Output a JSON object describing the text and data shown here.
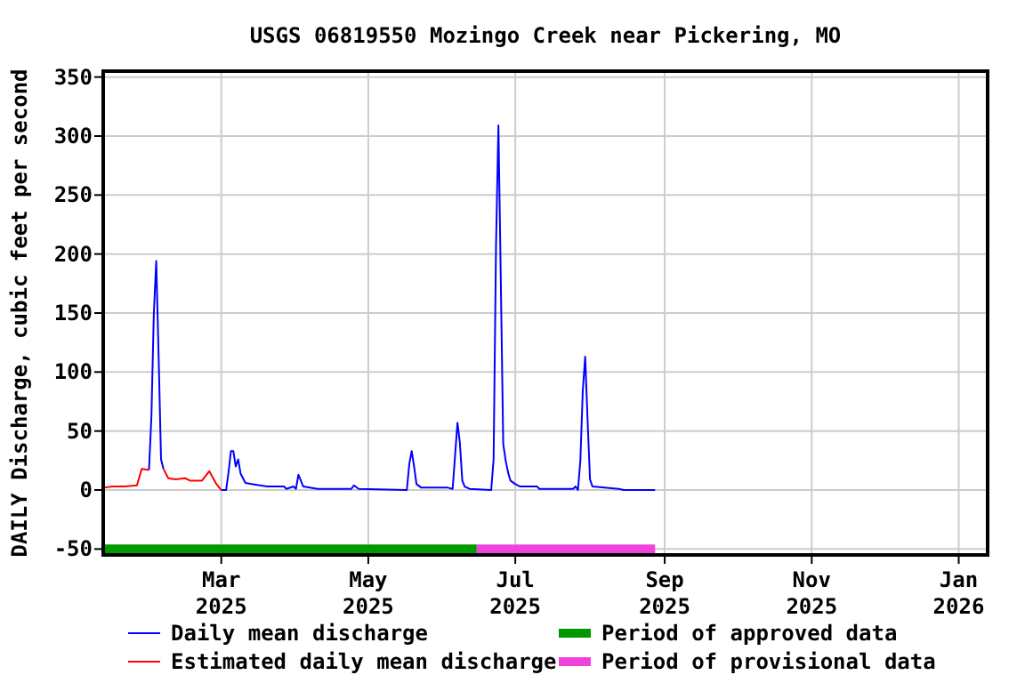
{
  "chart_data": {
    "type": "line",
    "title": "USGS 06819550 Mozingo Creek near Pickering, MO",
    "ylabel": "DAILY Discharge, cubic feet per second",
    "xlim": [
      "2025-01-11",
      "2026-01-13"
    ],
    "xticks": [
      {
        "value": "2025-03-01",
        "label": "Mar\n2025"
      },
      {
        "value": "2025-05-01",
        "label": "May\n2025"
      },
      {
        "value": "2025-07-01",
        "label": "Jul\n2025"
      },
      {
        "value": "2025-09-01",
        "label": "Sep\n2025"
      },
      {
        "value": "2025-11-01",
        "label": "Nov\n2025"
      },
      {
        "value": "2026-01-01",
        "label": "Jan\n2026"
      }
    ],
    "ylim": [
      -55,
      355
    ],
    "yticks": [
      -50,
      0,
      50,
      100,
      150,
      200,
      250,
      300,
      350
    ],
    "grid": true,
    "legend": "bottom",
    "line_style": "solid",
    "marker": "none",
    "series": [
      {
        "name": "Daily mean discharge",
        "color": "#0000ff",
        "x": [
          "2025-01-30",
          "2025-01-31",
          "2025-02-01",
          "2025-02-02",
          "2025-02-03",
          "2025-02-04",
          "2025-02-05",
          "2025-02-15",
          "2025-03-01",
          "2025-03-03",
          "2025-03-04",
          "2025-03-05",
          "2025-03-06",
          "2025-03-07",
          "2025-03-08",
          "2025-03-09",
          "2025-03-11",
          "2025-03-14",
          "2025-03-20",
          "2025-03-27",
          "2025-03-28",
          "2025-03-31",
          "2025-04-01",
          "2025-04-02",
          "2025-04-03",
          "2025-04-04",
          "2025-04-10",
          "2025-04-24",
          "2025-04-25",
          "2025-04-27",
          "2025-05-17",
          "2025-05-18",
          "2025-05-19",
          "2025-05-20",
          "2025-05-21",
          "2025-05-23",
          "2025-06-03",
          "2025-06-05",
          "2025-06-06",
          "2025-06-07",
          "2025-06-08",
          "2025-06-09",
          "2025-06-10",
          "2025-06-12",
          "2025-06-21",
          "2025-06-22",
          "2025-06-23",
          "2025-06-24",
          "2025-06-25",
          "2025-06-26",
          "2025-06-27",
          "2025-06-28",
          "2025-06-29",
          "2025-07-01",
          "2025-07-03",
          "2025-07-10",
          "2025-07-11",
          "2025-07-25",
          "2025-07-26",
          "2025-07-27",
          "2025-07-28",
          "2025-07-29",
          "2025-07-30",
          "2025-07-31",
          "2025-08-01",
          "2025-08-02",
          "2025-08-13",
          "2025-08-15",
          "2025-08-28"
        ],
        "values": [
          17,
          62,
          149,
          194,
          113,
          26,
          18,
          null,
          0,
          0,
          15,
          33,
          33,
          20,
          26,
          14,
          6,
          5,
          3,
          3,
          1,
          3,
          1,
          13,
          8,
          3,
          1,
          1,
          4,
          1,
          0,
          22,
          33,
          20,
          5,
          2,
          2,
          1,
          29,
          57,
          40,
          8,
          3,
          1,
          0,
          26,
          207,
          309,
          176,
          39,
          25,
          15,
          8,
          5,
          3,
          3,
          1,
          1,
          3,
          0,
          25,
          84,
          113,
          59,
          9,
          3,
          1,
          0,
          0
        ]
      },
      {
        "name": "Estimated daily mean discharge",
        "color": "#ff0000",
        "x": [
          "2025-01-11",
          "2025-01-15",
          "2025-01-20",
          "2025-01-25",
          "2025-01-27",
          "2025-01-30",
          "2025-02-02",
          "2025-02-05",
          "2025-02-07",
          "2025-02-10",
          "2025-02-14",
          "2025-02-16",
          "2025-02-21",
          "2025-02-24",
          "2025-02-27",
          "2025-03-01"
        ],
        "values": [
          2,
          3,
          3,
          4,
          18,
          17,
          null,
          18,
          10,
          9,
          10,
          8,
          8,
          16,
          5,
          0
        ]
      },
      {
        "name": "Period of approved data",
        "type": "step",
        "color": "#009900",
        "x": [
          "2025-01-11",
          "2025-06-15"
        ],
        "values": [
          -50,
          -50
        ]
      },
      {
        "name": "Period of provisional data",
        "type": "step",
        "color": "#ee44dd",
        "x": [
          "2025-06-15",
          "2025-08-28"
        ],
        "values": [
          -50,
          -50
        ]
      }
    ]
  }
}
